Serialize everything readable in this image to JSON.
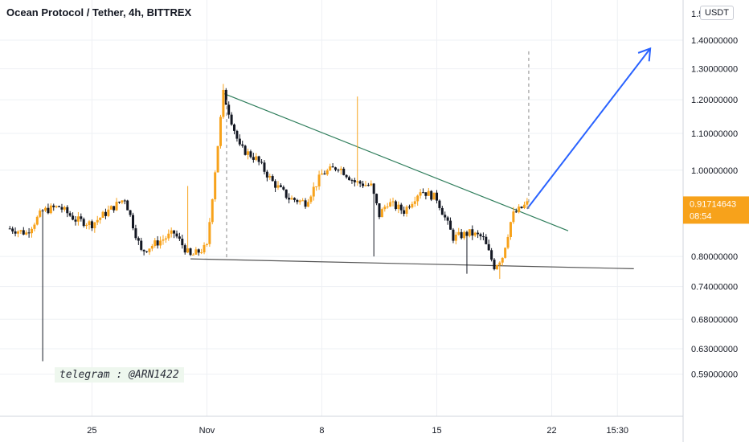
{
  "chart_data": {
    "type": "candlestick",
    "title": "Ocean Protocol / Tether, 4h, BITTREX",
    "currency": "USDT",
    "y_scale": "log",
    "ylim": [
      0.555,
      1.49
    ],
    "y_ticks": [
      {
        "v": 1.4,
        "label": "1.40000000"
      },
      {
        "v": 1.3,
        "label": "1.30000000"
      },
      {
        "v": 1.2,
        "label": "1.20000000"
      },
      {
        "v": 1.1,
        "label": "1.10000000"
      },
      {
        "v": 1.0,
        "label": "1.00000000"
      },
      {
        "v": 0.8,
        "label": "0.80000000"
      },
      {
        "v": 0.74,
        "label": "0.74000000"
      },
      {
        "v": 0.68,
        "label": "0.68000000"
      },
      {
        "v": 0.63,
        "label": "0.63000000"
      },
      {
        "v": 0.59,
        "label": "0.59000000"
      }
    ],
    "top_tick_label": "1.5",
    "x_ticks": [
      {
        "t": 5,
        "label": "25"
      },
      {
        "t": 12,
        "label": "Nov"
      },
      {
        "t": 19,
        "label": "8"
      },
      {
        "t": 26,
        "label": "15"
      },
      {
        "t": 33,
        "label": "22"
      },
      {
        "t": 37,
        "label": "15:30"
      }
    ],
    "price_label": {
      "value": 0.91714643,
      "text": "0.91714643",
      "countdown": "08:54"
    },
    "anchors": [
      {
        "t": 0,
        "p": 0.86
      },
      {
        "t": 1,
        "p": 0.85
      },
      {
        "t": 2,
        "p": 0.9
      },
      {
        "t": 3,
        "p": 0.91
      },
      {
        "t": 4,
        "p": 0.88
      },
      {
        "t": 5,
        "p": 0.87
      },
      {
        "t": 6,
        "p": 0.9
      },
      {
        "t": 7,
        "p": 0.93
      },
      {
        "t": 8,
        "p": 0.81
      },
      {
        "t": 9,
        "p": 0.83
      },
      {
        "t": 10,
        "p": 0.85
      },
      {
        "t": 11,
        "p": 0.8
      },
      {
        "t": 12,
        "p": 0.82
      },
      {
        "t": 12.5,
        "p": 1.0
      },
      {
        "t": 13,
        "p": 1.22
      },
      {
        "t": 14,
        "p": 1.06
      },
      {
        "t": 15,
        "p": 1.03
      },
      {
        "t": 16,
        "p": 0.97
      },
      {
        "t": 17,
        "p": 0.93
      },
      {
        "t": 18,
        "p": 0.92
      },
      {
        "t": 19,
        "p": 0.99
      },
      {
        "t": 20,
        "p": 1.01
      },
      {
        "t": 21,
        "p": 0.97
      },
      {
        "t": 22,
        "p": 0.96
      },
      {
        "t": 22.5,
        "p": 0.89
      },
      {
        "t": 23,
        "p": 0.92
      },
      {
        "t": 24,
        "p": 0.9
      },
      {
        "t": 25,
        "p": 0.95
      },
      {
        "t": 26,
        "p": 0.93
      },
      {
        "t": 27,
        "p": 0.84
      },
      {
        "t": 28,
        "p": 0.85
      },
      {
        "t": 28.8,
        "p": 0.84
      },
      {
        "t": 29.5,
        "p": 0.78
      },
      {
        "t": 30,
        "p": 0.8
      },
      {
        "t": 30.6,
        "p": 0.89
      },
      {
        "t": 31.5,
        "p": 0.917
      }
    ],
    "spikes": [
      {
        "t": 2,
        "p": 0.61
      },
      {
        "t": 13,
        "p": 1.25
      },
      {
        "t": 21.2,
        "p": 1.21
      },
      {
        "t": 10.8,
        "p": 0.96
      },
      {
        "t": 22.2,
        "p": 0.8
      },
      {
        "t": 27.8,
        "p": 0.765
      },
      {
        "t": 29.9,
        "p": 0.755
      }
    ],
    "trendlines": [
      {
        "name": "resistance",
        "color": "#2e7d5b",
        "p1": {
          "t": 13,
          "p": 1.22
        },
        "p2": {
          "t": 34,
          "p": 0.855
        }
      },
      {
        "name": "support",
        "color": "#555555",
        "p1": {
          "t": 11,
          "p": 0.795
        },
        "p2": {
          "t": 38,
          "p": 0.775
        }
      },
      {
        "name": "projection",
        "color": "#2962ff",
        "p1": {
          "t": 31.5,
          "p": 0.905
        },
        "p2": {
          "t": 39,
          "p": 1.37
        }
      }
    ],
    "measures": [
      {
        "t": 13.2,
        "p1": 1.2,
        "p2": 0.795
      },
      {
        "t": 31.6,
        "p1": 0.905,
        "p2": 1.37
      }
    ],
    "colors": {
      "up": "#f7a21b",
      "down": "#131722",
      "grid": "#eef0f4",
      "price_tag": "#f7a21b"
    }
  },
  "watermark": "telegram : @ARN1422"
}
